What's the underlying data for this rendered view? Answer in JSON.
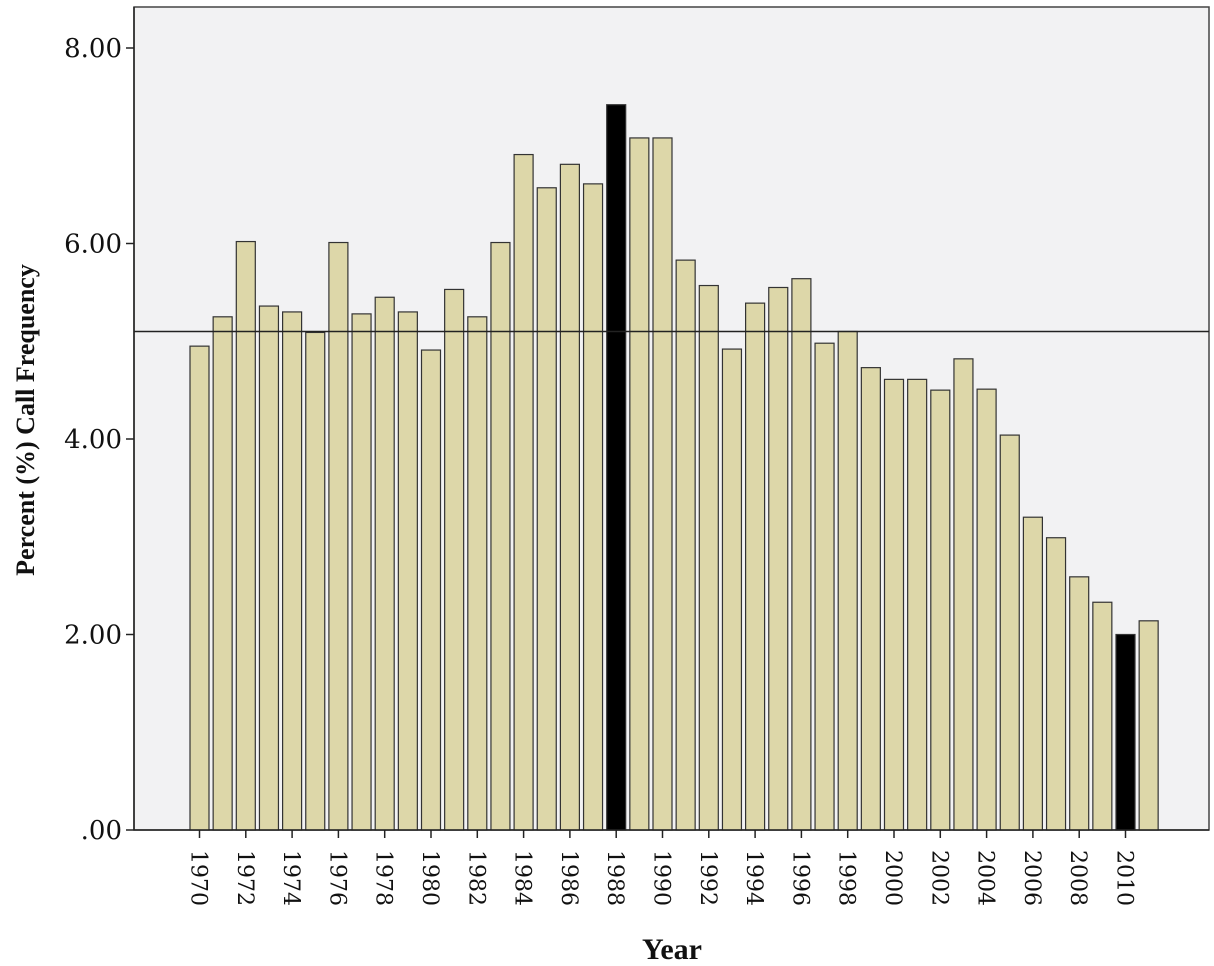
{
  "chart_data": {
    "type": "bar",
    "title": "",
    "xlabel": "Year",
    "ylabel": "Percent (%) Call Frequency",
    "ylim": [
      0,
      8
    ],
    "yticks": [
      0,
      2,
      4,
      6,
      8
    ],
    "ytick_labels": [
      ".00",
      "2.00",
      "4.00",
      "6.00",
      "8.00"
    ],
    "categories": [
      1970,
      1971,
      1972,
      1973,
      1974,
      1975,
      1976,
      1977,
      1978,
      1979,
      1980,
      1981,
      1982,
      1983,
      1984,
      1985,
      1986,
      1987,
      1988,
      1989,
      1990,
      1991,
      1992,
      1993,
      1994,
      1995,
      1996,
      1997,
      1998,
      1999,
      2000,
      2001,
      2002,
      2003,
      2004,
      2005,
      2006,
      2007,
      2008,
      2009,
      2010,
      2011
    ],
    "xtick_labels": [
      "1970",
      "1972",
      "1974",
      "1976",
      "1978",
      "1980",
      "1982",
      "1984",
      "1986",
      "1988",
      "1990",
      "1992",
      "1994",
      "1996",
      "1998",
      "2000",
      "2002",
      "2004",
      "2006",
      "2008",
      "2010"
    ],
    "values": [
      4.95,
      5.25,
      6.02,
      5.36,
      5.3,
      5.09,
      6.01,
      5.28,
      5.45,
      5.3,
      4.91,
      5.53,
      5.25,
      6.01,
      6.91,
      6.57,
      6.81,
      6.61,
      7.42,
      7.08,
      7.08,
      5.83,
      5.57,
      4.92,
      5.39,
      5.55,
      5.64,
      4.98,
      5.1,
      4.73,
      4.61,
      4.61,
      4.5,
      4.82,
      4.51,
      4.04,
      3.2,
      2.99,
      2.59,
      2.33,
      2.0,
      2.14
    ],
    "highlighted": [
      1988,
      2010
    ],
    "reference_line": 5.1,
    "grid": false,
    "legend": "none",
    "colors": {
      "bar": "#ddd7a9",
      "bar_highlight": "#000000",
      "bar_edge": "#333333",
      "plot_background": "#f2f2f3",
      "reference_line": "#222222"
    }
  }
}
